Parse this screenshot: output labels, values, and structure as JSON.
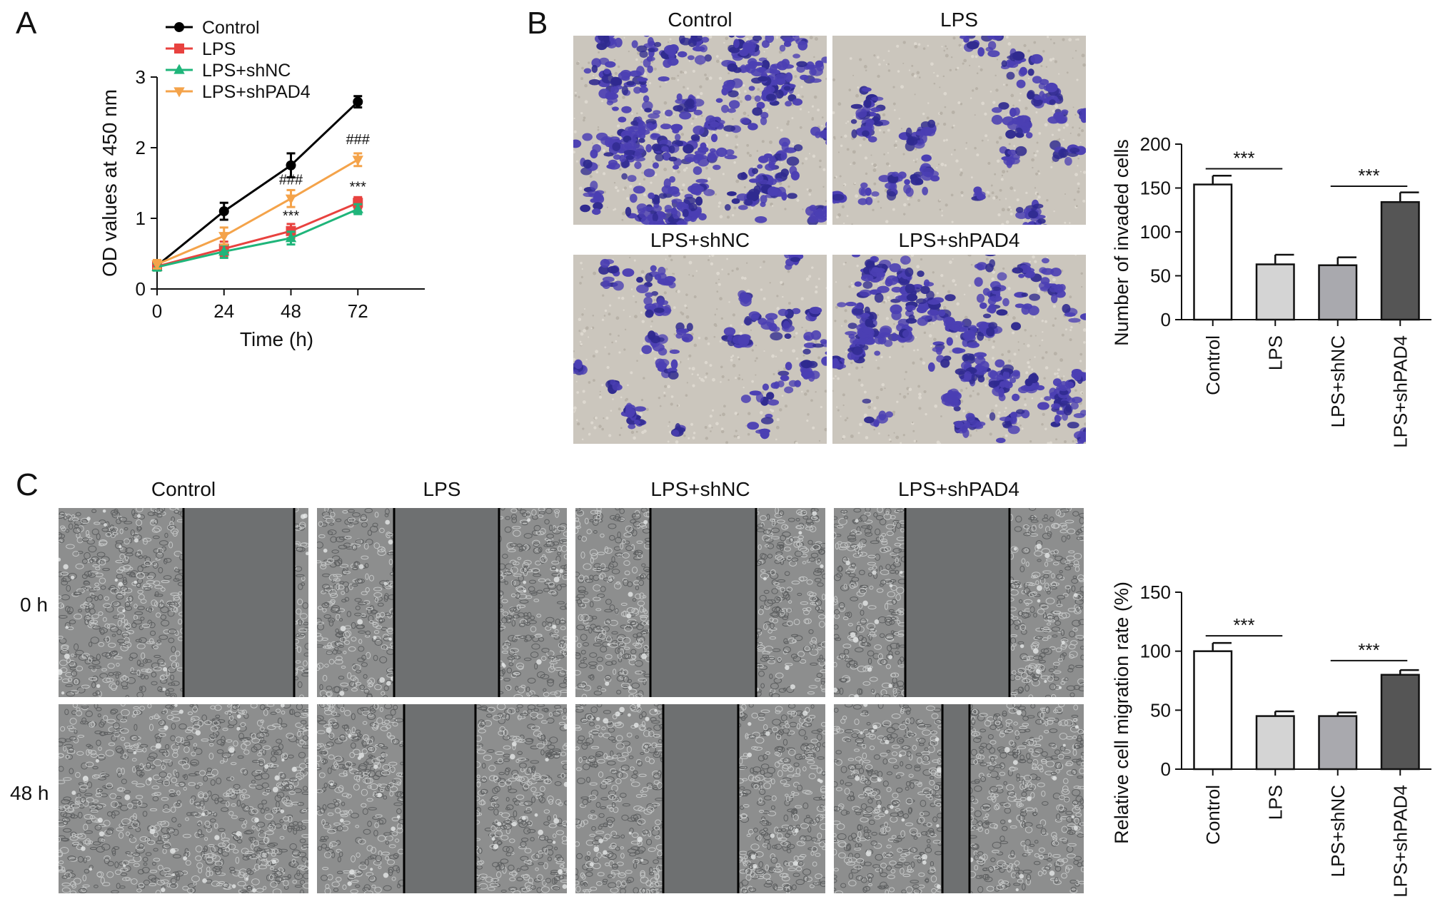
{
  "panels": {
    "a": {
      "letter": "A"
    },
    "b": {
      "letter": "B"
    },
    "c": {
      "letter": "C"
    }
  },
  "colors": {
    "control": "#000000",
    "lps": "#e8423f",
    "shnc": "#1fb57a",
    "shpad4": "#f4a34a",
    "bar_control": "#ffffff",
    "bar_lps": "#d4d4d4",
    "bar_shnc": "#a9a9ae",
    "bar_shpad4": "#555555",
    "stain": "#4a3fb0",
    "stain_bg": "#cbc6bd",
    "phase_bg": "#8d8e8e",
    "gap": "#6e7071"
  },
  "invasion_images": {
    "titles": [
      "Control",
      "LPS",
      "LPS+shNC",
      "LPS+shPAD4"
    ],
    "density": [
      1.0,
      0.42,
      0.38,
      0.85
    ]
  },
  "migration_images": {
    "titles": [
      "Control",
      "LPS",
      "LPS+shNC",
      "LPS+shPAD4"
    ],
    "rows": [
      "0 h",
      "48 h"
    ]
  },
  "chart_data": [
    {
      "type": "line",
      "panel": "A",
      "x": [
        0,
        24,
        48,
        72
      ],
      "xticks": [
        "0",
        "24",
        "48",
        "72"
      ],
      "yticks": [
        "0",
        "1",
        "2",
        "3"
      ],
      "xlabel": "Time (h)",
      "ylabel": "OD values at 450 nm",
      "xlim": [
        0,
        96
      ],
      "ylim": [
        0,
        3
      ],
      "legend_position": "top-left",
      "series": [
        {
          "name": "Control",
          "values": [
            0.33,
            1.1,
            1.75,
            2.65
          ],
          "err": [
            0.06,
            0.12,
            0.17,
            0.08
          ],
          "marker": "circle",
          "color": "#000000"
        },
        {
          "name": "LPS",
          "values": [
            0.32,
            0.57,
            0.82,
            1.22
          ],
          "err": [
            0.05,
            0.1,
            0.1,
            0.08
          ],
          "marker": "square",
          "color": "#e8423f"
        },
        {
          "name": "LPS+shNC",
          "values": [
            0.31,
            0.53,
            0.72,
            1.13
          ],
          "err": [
            0.05,
            0.09,
            0.09,
            0.07
          ],
          "marker": "triangle",
          "color": "#1fb57a"
        },
        {
          "name": "LPS+shPAD4",
          "values": [
            0.35,
            0.75,
            1.28,
            1.83
          ],
          "err": [
            0.06,
            0.12,
            0.12,
            0.09
          ],
          "marker": "inverted-triangle",
          "color": "#f4a34a"
        }
      ],
      "annotations": [
        {
          "text": "###",
          "x": 48,
          "y": 1.48
        },
        {
          "text": "***",
          "x": 48,
          "y": 0.97
        },
        {
          "text": "###",
          "x": 72,
          "y": 2.05
        },
        {
          "text": "***",
          "x": 72,
          "y": 1.38
        }
      ]
    },
    {
      "type": "bar",
      "panel": "B",
      "categories": [
        "Control",
        "LPS",
        "LPS+shNC",
        "LPS+shPAD4"
      ],
      "values": [
        154,
        63,
        62,
        134
      ],
      "err": [
        10,
        11,
        9,
        11
      ],
      "ylabel": "Number of invaded cells",
      "ylim": [
        0,
        200
      ],
      "yticks": [
        "0",
        "50",
        "100",
        "150",
        "200"
      ],
      "significance": [
        {
          "text": "***",
          "from": 0,
          "to": 1,
          "y": 172
        },
        {
          "text": "***",
          "from": 2,
          "to": 3,
          "y": 152
        }
      ]
    },
    {
      "type": "bar",
      "panel": "C",
      "categories": [
        "Control",
        "LPS",
        "LPS+shNC",
        "LPS+shPAD4"
      ],
      "values": [
        100,
        45,
        45,
        80
      ],
      "err": [
        7,
        4,
        3,
        4
      ],
      "ylabel": "Relative cell migration rate (%)",
      "ylim": [
        0,
        150
      ],
      "yticks": [
        "0",
        "50",
        "100",
        "150"
      ],
      "significance": [
        {
          "text": "***",
          "from": 0,
          "to": 1,
          "y": 113
        },
        {
          "text": "***",
          "from": 2,
          "to": 3,
          "y": 92
        }
      ]
    }
  ]
}
